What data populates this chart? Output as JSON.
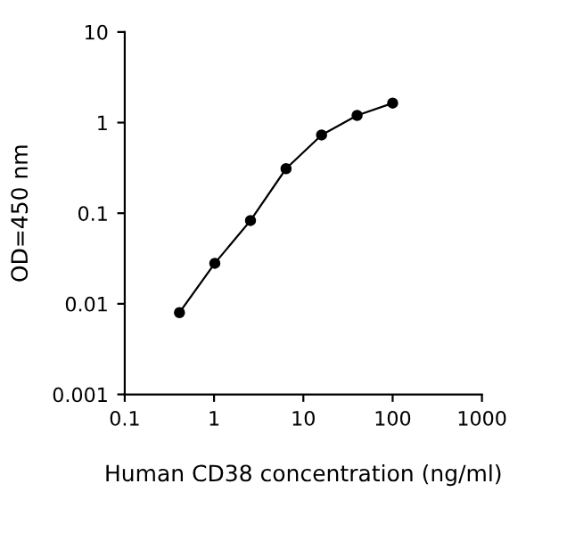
{
  "chart_data": {
    "type": "line",
    "xlabel": "Human CD38 concentration (ng/ml)",
    "ylabel": "OD=450 nm",
    "log": "xy",
    "marker": "circle",
    "line_style": "solid",
    "grid": false,
    "x": [
      0.41,
      1.02,
      2.56,
      6.4,
      16,
      40,
      100
    ],
    "series": [
      {
        "color": "#000000",
        "values": [
          0.008,
          0.028,
          0.083,
          0.31,
          0.73,
          1.2,
          1.64
        ]
      }
    ],
    "xlim": [
      0.1,
      1000
    ],
    "xticks": [
      0.1,
      1,
      10,
      100,
      1000
    ],
    "ylim": [
      0.001,
      10
    ],
    "yticks": [
      0.001,
      0.01,
      0.1,
      1,
      10
    ]
  }
}
